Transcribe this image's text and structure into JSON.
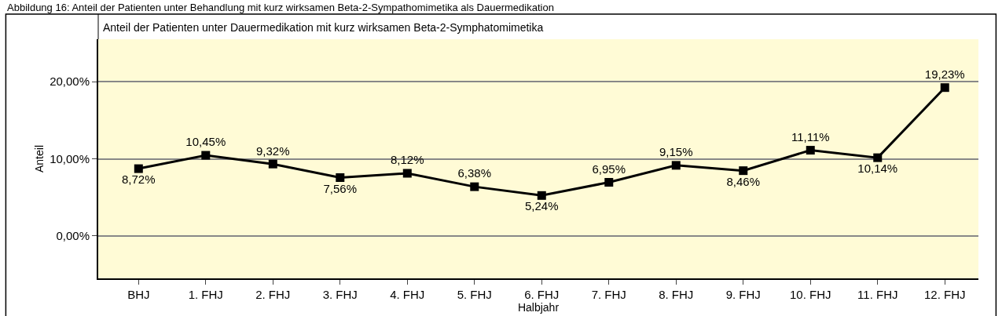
{
  "chart_data": {
    "type": "line",
    "title": "Abbildung 16: Anteil der Patienten unter Behandlung mit kurz wirksamen Beta-2-Sympathomimetika als Dauermedikation",
    "subtitle": "Anteil der Patienten unter Dauermedikation mit kurz wirksamen Beta-2-Symphatomimetika",
    "xlabel": "Halbjahr",
    "ylabel": "Anteil",
    "categories": [
      "BHJ",
      "1. FHJ",
      "2. FHJ",
      "3. FHJ",
      "4. FHJ",
      "5. FHJ",
      "6. FHJ",
      "7. FHJ",
      "8. FHJ",
      "9. FHJ",
      "10. FHJ",
      "11. FHJ",
      "12. FHJ"
    ],
    "series": [
      {
        "color": "#000000",
        "values": [
          8.72,
          10.45,
          9.32,
          7.56,
          8.12,
          6.38,
          5.24,
          6.95,
          9.15,
          8.46,
          11.11,
          10.14,
          19.23
        ],
        "value_labels": [
          "8,72%",
          "10,45%",
          "9,32%",
          "7,56%",
          "8,12%",
          "6,38%",
          "5,24%",
          "6,95%",
          "9,15%",
          "8,46%",
          "11,11%",
          "10,14%",
          "19,23%"
        ]
      }
    ],
    "ylim": [
      -5.5,
      25.5
    ],
    "yticks": [
      {
        "value": 0,
        "label": "0,00%"
      },
      {
        "value": 10,
        "label": "10,00%"
      },
      {
        "value": 20,
        "label": "20,00%"
      }
    ],
    "grid": "y",
    "marker": "square",
    "line_style": "solid"
  }
}
